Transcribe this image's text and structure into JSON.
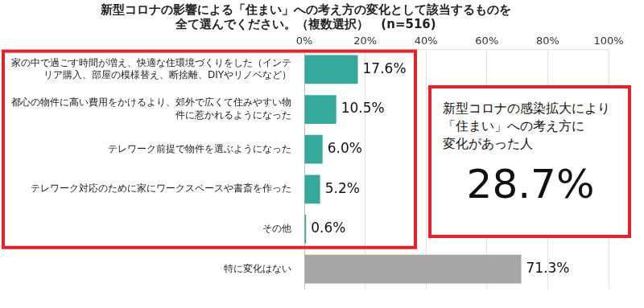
{
  "chart_data": {
    "type": "bar",
    "orientation": "horizontal",
    "title": [
      "新型コロナの影響による「住まい」への考え方の変化として該当するものを",
      "全て選んでください。（複数選択）　(n=516)"
    ],
    "categories": [
      "家の中で過ごす時間が増え、快適な住環境づくりをした（インテリア購入、部屋の模様替え、断捨離、DIYやリノベなど）",
      "都心の物件に高い費用をかけるより、郊外で広くて住みやすい物件に惹かれるようになった",
      "テレワーク前提で物件を選ぶようになった",
      "テレワーク対応のために家にワークスペースや書斎を作った",
      "その他",
      "特に変化はない"
    ],
    "values": [
      17.6,
      10.5,
      6.0,
      5.2,
      0.6,
      71.3
    ],
    "value_labels": [
      "17.6%",
      "10.5%",
      "6.0%",
      "5.2%",
      "0.6%",
      "71.3%"
    ],
    "colors": [
      "#35a99b",
      "#35a99b",
      "#35a99b",
      "#35a99b",
      "#35a99b",
      "#a6a6a6"
    ],
    "xlim": [
      0,
      100
    ],
    "xticks": [
      {
        "value": 0,
        "label": "0%"
      },
      {
        "value": 20,
        "label": "20%"
      },
      {
        "value": 40,
        "label": "40%"
      },
      {
        "value": 60,
        "label": "60%"
      },
      {
        "value": 80,
        "label": "80%"
      },
      {
        "value": 100,
        "label": "100%"
      }
    ],
    "grid": true,
    "data_labels": true,
    "annotation": {
      "text": [
        "新型コロナの感染拡大により",
        "「住まい」への考え方に",
        "変化があった人"
      ],
      "figure": "28.7%"
    }
  }
}
